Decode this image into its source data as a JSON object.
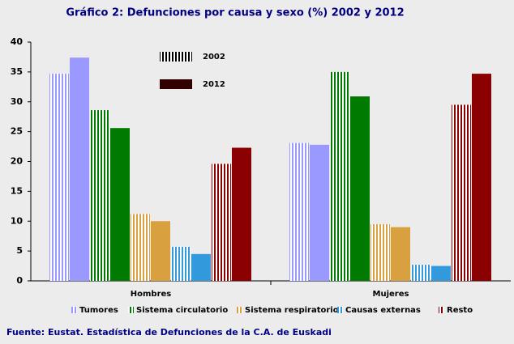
{
  "chart_data": {
    "type": "grouped-bar",
    "title": "Gráfico 2: Defunciones por causa y sexo (%) 2002 y 2012",
    "source": "Fuente: Eustat. Estadística de Defunciones de la C.A. de Euskadi",
    "categories": [
      "Hombres",
      "Mujeres"
    ],
    "years": [
      "2002",
      "2012"
    ],
    "series": [
      {
        "name": "Tumores",
        "color": "#9999ff",
        "values": [
          [
            34.7,
            37.4
          ],
          [
            23.1,
            22.8
          ]
        ]
      },
      {
        "name": "Sistema circulatorio",
        "color": "#007a00",
        "values": [
          [
            28.6,
            25.6
          ],
          [
            35.0,
            30.9
          ]
        ]
      },
      {
        "name": "Sistema respiratorio",
        "color": "#d9a040",
        "values": [
          [
            11.2,
            10.0
          ],
          [
            9.5,
            9.0
          ]
        ]
      },
      {
        "name": "Causas externas",
        "color": "#3399dd",
        "values": [
          [
            5.7,
            4.5
          ],
          [
            2.7,
            2.5
          ]
        ]
      },
      {
        "name": "Resto",
        "color": "#8b0000",
        "values": [
          [
            19.6,
            22.3
          ],
          [
            29.5,
            34.7
          ]
        ]
      }
    ],
    "ylim": [
      0,
      40
    ],
    "yticks": [
      0,
      5,
      10,
      15,
      20,
      25,
      30,
      35,
      40
    ]
  }
}
